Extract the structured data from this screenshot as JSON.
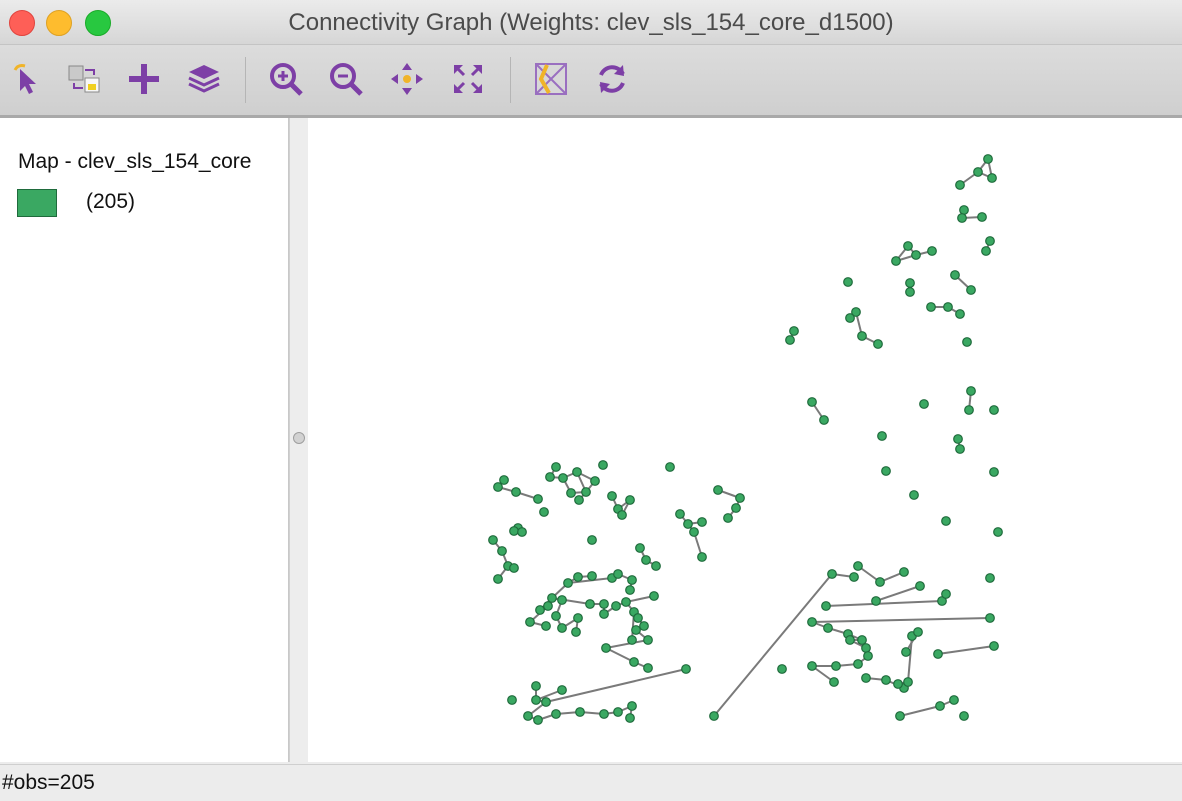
{
  "window": {
    "title": "Connectivity Graph (Weights: clev_sls_154_core_d1500)"
  },
  "toolbar": {
    "tools": [
      {
        "name": "select-tool-icon"
      },
      {
        "name": "selection-mode-icon"
      },
      {
        "name": "add-layer-icon"
      },
      {
        "name": "layers-icon"
      },
      {
        "name": "zoom-in-icon"
      },
      {
        "name": "zoom-out-icon"
      },
      {
        "name": "pan-icon"
      },
      {
        "name": "full-extent-icon"
      },
      {
        "name": "map-theme-icon"
      },
      {
        "name": "refresh-icon"
      }
    ]
  },
  "legend": {
    "title": "Map - clev_sls_154_core",
    "category_count": "(205)",
    "color": "#3aa862"
  },
  "map": {
    "point_color": "#3aa862",
    "edge_color": "#7a7a7a"
  },
  "status": {
    "text": "#obs=205"
  }
}
